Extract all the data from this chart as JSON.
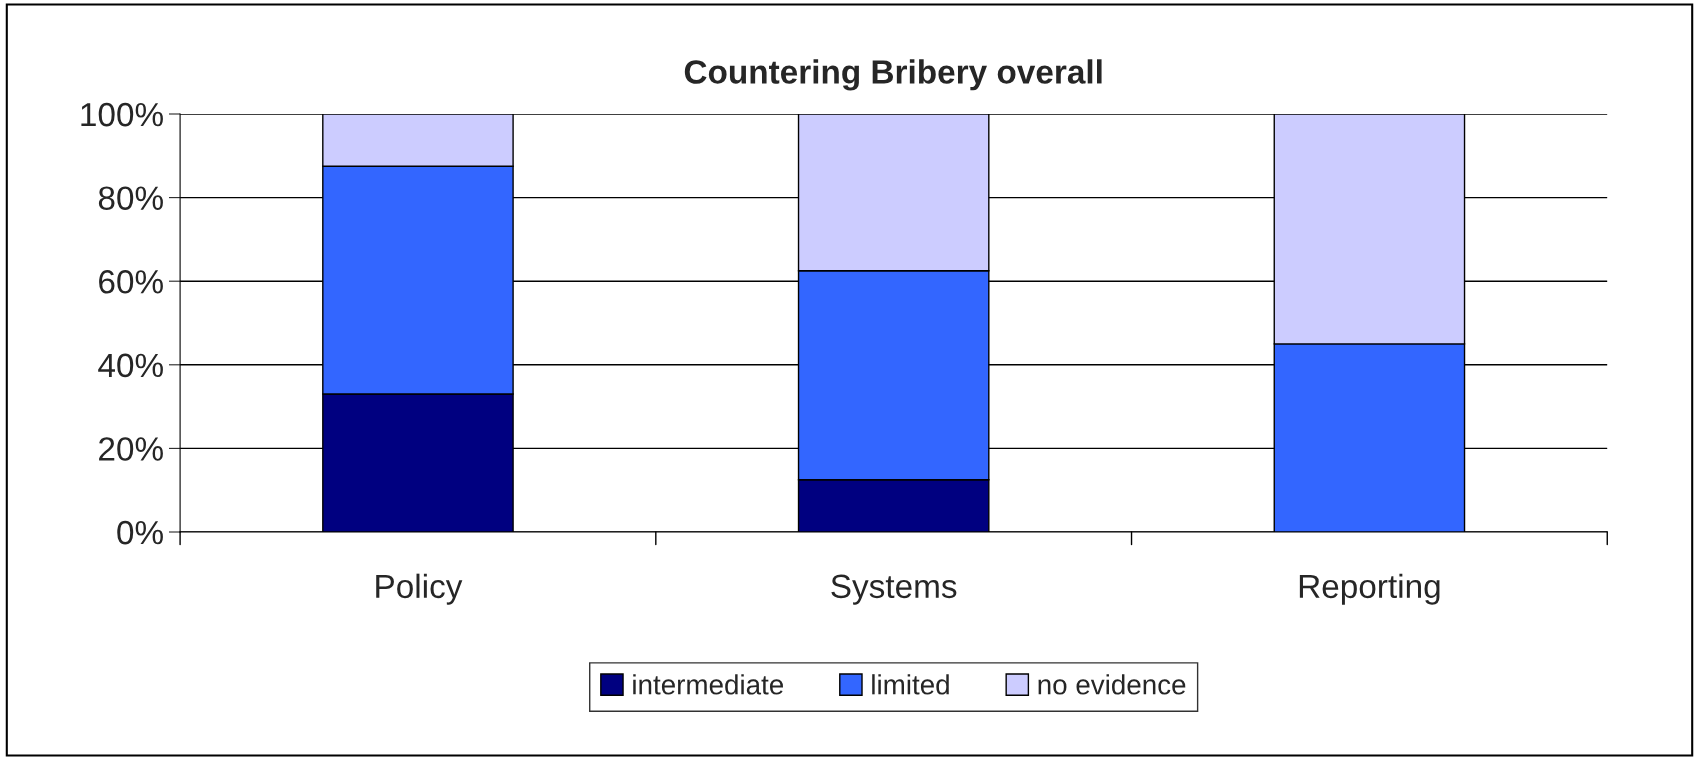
{
  "chart_data": {
    "type": "bar",
    "title": "Countering Bribery overall",
    "categories": [
      "Policy",
      "Systems",
      "Reporting"
    ],
    "series": [
      {
        "name": "intermediate",
        "color": "#000080",
        "values": [
          33,
          12.5,
          0
        ]
      },
      {
        "name": "limited",
        "color": "#3366ff",
        "values": [
          54.5,
          50,
          45
        ]
      },
      {
        "name": "no evidence",
        "color": "#ccccff",
        "values": [
          12.5,
          37.5,
          55
        ]
      }
    ],
    "stacked": true,
    "ylim": [
      0,
      100
    ],
    "yticks": [
      {
        "value": 0,
        "label": "0%"
      },
      {
        "value": 20,
        "label": "20%"
      },
      {
        "value": 40,
        "label": "40%"
      },
      {
        "value": 60,
        "label": "60%"
      },
      {
        "value": 80,
        "label": "80%"
      },
      {
        "value": 100,
        "label": "100%"
      }
    ],
    "grid": "y",
    "legend": "bottom"
  }
}
